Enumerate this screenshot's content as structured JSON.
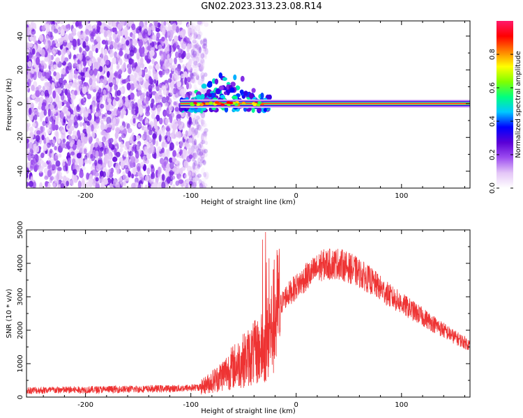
{
  "title": "GN02.2023.313.23.08.R14",
  "chart_data": [
    {
      "type": "heatmap",
      "xlabel": "Height of straight line (km)",
      "ylabel": "Frequency (Hz)",
      "xlim": [
        -256,
        165
      ],
      "ylim": [
        -50,
        49
      ],
      "x_ticks": [
        -200,
        -100,
        0,
        100
      ],
      "y_ticks": [
        -40,
        -20,
        0,
        20,
        40
      ],
      "colorbar": {
        "label": "Normalized spectral amplitude",
        "range": [
          0,
          1
        ],
        "ticks": [
          0.0,
          0.2,
          0.4,
          0.6,
          0.8
        ],
        "colormap": [
          "#ffffff",
          "#e4c6f7",
          "#9d4df0",
          "#5a00d6",
          "#0000ff",
          "#00c8ff",
          "#00ff80",
          "#80ff00",
          "#ffff00",
          "#ff8000",
          "#ff0000",
          "#ff1a6b"
        ]
      },
      "features": [
        {
          "name": "noise",
          "x_range": [
            -256,
            -85
          ],
          "y_range": [
            -50,
            49
          ],
          "amplitude": 0.1
        },
        {
          "name": "carrier",
          "x_range": [
            -110,
            165
          ],
          "frequency": 0,
          "amplitude": 0.95
        }
      ]
    },
    {
      "type": "line",
      "xlabel": "Height of straight line (km)",
      "ylabel": "SNR (10 * v/v)",
      "xlim": [
        -256,
        165
      ],
      "ylim": [
        0,
        5000
      ],
      "x_ticks": [
        -200,
        -100,
        0,
        100
      ],
      "y_ticks": [
        0,
        1000,
        2000,
        3000,
        4000,
        5000
      ],
      "color": "#ee3333",
      "envelope": {
        "x": [
          -256,
          -200,
          -150,
          -110,
          -90,
          -75,
          -60,
          -45,
          -30,
          -22,
          -18,
          -10,
          0,
          10,
          25,
          40,
          55,
          70,
          90,
          110,
          130,
          150,
          165
        ],
        "y": [
          200,
          220,
          240,
          260,
          300,
          550,
          900,
          1200,
          1500,
          2200,
          2600,
          3000,
          3300,
          3600,
          3950,
          4000,
          3800,
          3500,
          3000,
          2600,
          2200,
          1800,
          1550
        ]
      }
    }
  ]
}
